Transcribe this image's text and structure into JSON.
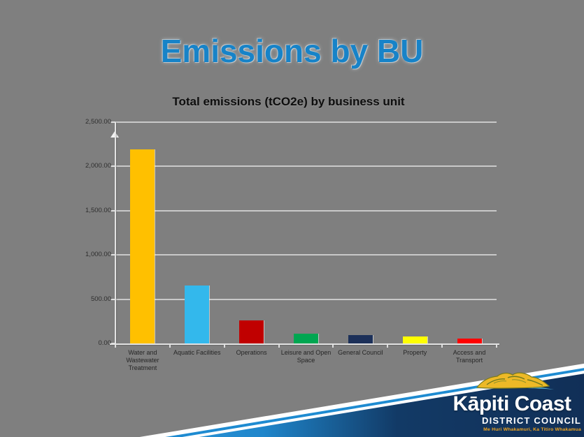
{
  "slide": {
    "title": "Emissions by BU",
    "title_color": "#1783C8",
    "background_color": "#7F7F7F"
  },
  "chart_data": {
    "type": "bar",
    "title": "Total emissions (tCO2e) by business unit",
    "xlabel": "",
    "ylabel": "",
    "categories": [
      "Water and Wastewater Treatment",
      "Aquatic Facilities",
      "Operations",
      "Leisure and Open Space",
      "General Council",
      "Property",
      "Access and Transport"
    ],
    "values": [
      2190,
      655,
      260,
      110,
      95,
      80,
      55
    ],
    "bar_colors": [
      "#FFC000",
      "#33B8EC",
      "#C00000",
      "#00A651",
      "#1C3059",
      "#FFFF00",
      "#FF0000"
    ],
    "ylim": [
      0,
      2500
    ],
    "ytick_step": 500,
    "ytick_labels": [
      "0.00",
      "500.00",
      "1,000.00",
      "1,500.00",
      "2,000.00",
      "2,500.00"
    ],
    "grid": true,
    "legend_position": "none"
  },
  "logo": {
    "name": "Kāpiti Coast",
    "subtitle": "DISTRICT COUNCIL",
    "tagline": "Me Huri Whakamuri, Ka Titiro Whakamua",
    "tagline_color": "#F2A51F",
    "island_icon": "kapiti-island-hills",
    "band": {
      "stripe_white": "#FFFFFF",
      "stripe_blue": "#1E8BD1",
      "band_gradient_start": "#2A93D6",
      "band_gradient_end": "#112F57"
    }
  }
}
